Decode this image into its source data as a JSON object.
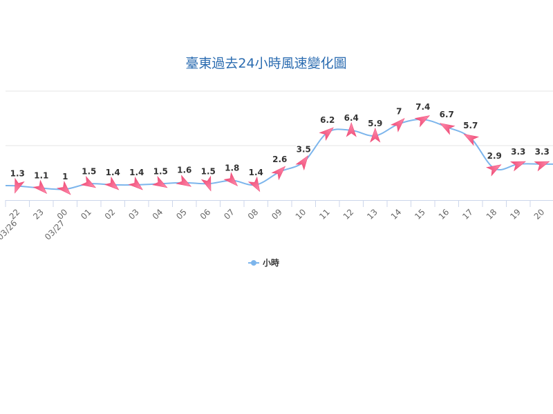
{
  "chart_data": {
    "type": "line",
    "title": "臺東過去24小時風速變化圖",
    "categories": [
      "22",
      "23",
      "00",
      "01",
      "02",
      "03",
      "04",
      "05",
      "06",
      "07",
      "08",
      "09",
      "10",
      "11",
      "12",
      "13",
      "14",
      "15",
      "16",
      "17",
      "18",
      "19",
      "20"
    ],
    "category_dates": {
      "0": "03/26",
      "2": "03/27"
    },
    "series": [
      {
        "name": "小時",
        "color": "#7cb5ec",
        "values": [
          1.3,
          1.1,
          1,
          1.5,
          1.4,
          1.4,
          1.5,
          1.6,
          1.5,
          1.8,
          1.4,
          2.6,
          3.5,
          6.2,
          6.4,
          5.9,
          7,
          7.4,
          6.7,
          5.7,
          2.9,
          3.3,
          3.3
        ],
        "marker": "wind-direction-arrow",
        "marker_color": "#f0507a",
        "arrow_direction_deg": [
          200,
          135,
          135,
          120,
          130,
          130,
          120,
          120,
          160,
          135,
          150,
          45,
          35,
          50,
          0,
          0,
          45,
          60,
          300,
          300,
          60,
          70,
          70
        ]
      }
    ],
    "ylim": [
      0,
      10
    ],
    "yticks_hidden": true,
    "grid": true,
    "data_labels": true,
    "legend": "bottom-center"
  }
}
